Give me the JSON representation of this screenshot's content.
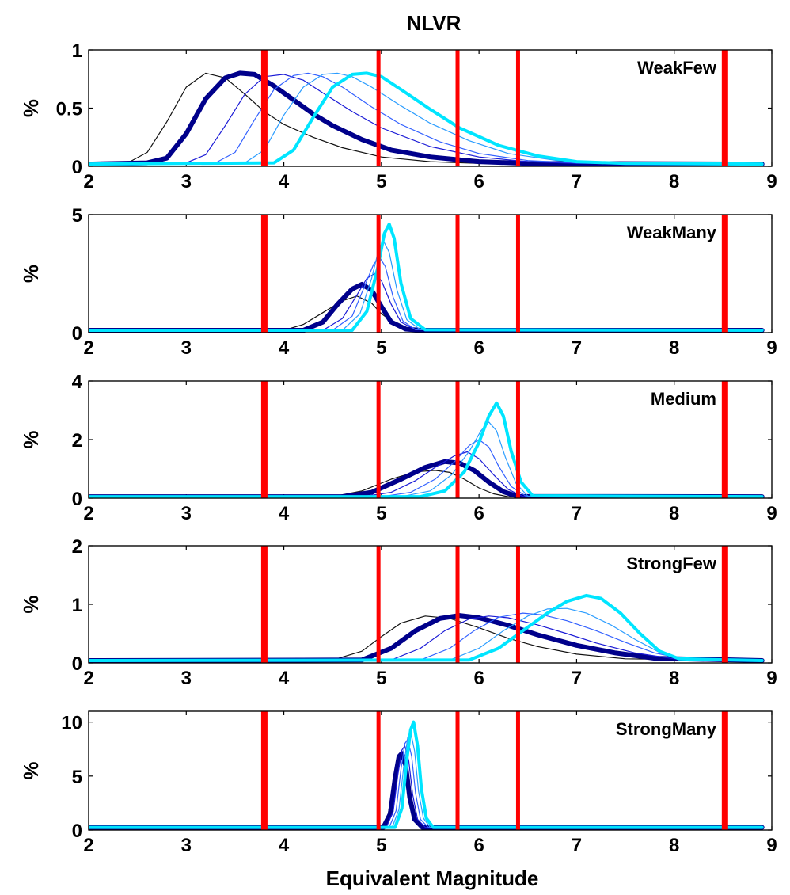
{
  "chart_data": {
    "type": "line",
    "title": "NLVR",
    "xlabel": "Equivalent Magnitude",
    "xlim": [
      2,
      9
    ],
    "xticks": [
      2,
      3,
      4,
      5,
      6,
      7,
      8,
      9
    ],
    "ylabel": "%",
    "grid": false,
    "legend": "none",
    "reference_lines": {
      "color": "#ff0000",
      "x": [
        3.8,
        4.97,
        5.78,
        6.4,
        8.52
      ]
    },
    "series_styles": [
      {
        "color": "#111111",
        "width": 1.2
      },
      {
        "color": "#00008b",
        "width": 6
      },
      {
        "color": "#1a1ad6",
        "width": 1.2
      },
      {
        "color": "#3361ff",
        "width": 1.2
      },
      {
        "color": "#2b9dff",
        "width": 1.2
      },
      {
        "color": "#00e5ff",
        "width": 4
      }
    ],
    "panels": [
      {
        "label": "WeakFew",
        "ylim": [
          0,
          1
        ],
        "yticks": [
          "0",
          "0.5",
          "1"
        ],
        "series": [
          {
            "x": [
              2.0,
              2.4,
              2.6,
              2.8,
              3.0,
              3.2,
              3.4,
              3.6,
              3.8,
              4.0,
              4.3,
              4.6,
              5.0,
              5.5,
              6.0,
              6.5,
              8.9
            ],
            "values": [
              0.02,
              0.03,
              0.12,
              0.38,
              0.68,
              0.8,
              0.76,
              0.62,
              0.47,
              0.36,
              0.25,
              0.16,
              0.08,
              0.04,
              0.025,
              0.02,
              0.02
            ]
          },
          {
            "x": [
              2.0,
              2.6,
              2.8,
              3.0,
              3.2,
              3.4,
              3.55,
              3.7,
              3.9,
              4.1,
              4.3,
              4.5,
              4.8,
              5.1,
              5.5,
              6.0,
              6.5,
              8.9
            ],
            "values": [
              0.02,
              0.03,
              0.07,
              0.28,
              0.58,
              0.76,
              0.8,
              0.79,
              0.69,
              0.57,
              0.45,
              0.35,
              0.23,
              0.14,
              0.08,
              0.04,
              0.025,
              0.02
            ]
          },
          {
            "x": [
              2.0,
              3.0,
              3.2,
              3.4,
              3.6,
              3.8,
              4.0,
              4.2,
              4.4,
              4.7,
              5.0,
              5.5,
              6.0,
              6.5,
              7.0,
              8.9
            ],
            "values": [
              0.02,
              0.03,
              0.1,
              0.35,
              0.62,
              0.77,
              0.79,
              0.74,
              0.63,
              0.47,
              0.33,
              0.17,
              0.08,
              0.04,
              0.025,
              0.02
            ]
          },
          {
            "x": [
              2.0,
              3.3,
              3.5,
              3.7,
              3.9,
              4.1,
              4.25,
              4.4,
              4.6,
              4.9,
              5.2,
              5.6,
              6.0,
              6.5,
              7.0,
              8.9
            ],
            "values": [
              0.02,
              0.03,
              0.12,
              0.4,
              0.66,
              0.78,
              0.8,
              0.77,
              0.68,
              0.51,
              0.36,
              0.21,
              0.11,
              0.05,
              0.03,
              0.02
            ]
          },
          {
            "x": [
              2.0,
              3.6,
              3.8,
              4.0,
              4.2,
              4.4,
              4.55,
              4.7,
              4.9,
              5.2,
              5.5,
              5.9,
              6.3,
              6.8,
              7.3,
              8.9
            ],
            "values": [
              0.02,
              0.03,
              0.14,
              0.44,
              0.68,
              0.79,
              0.8,
              0.77,
              0.68,
              0.52,
              0.37,
              0.22,
              0.11,
              0.05,
              0.03,
              0.02
            ]
          },
          {
            "x": [
              2.0,
              3.9,
              4.1,
              4.3,
              4.5,
              4.7,
              4.85,
              5.0,
              5.2,
              5.5,
              5.8,
              6.2,
              6.6,
              7.0,
              7.5,
              8.9
            ],
            "values": [
              0.02,
              0.03,
              0.14,
              0.42,
              0.68,
              0.79,
              0.8,
              0.77,
              0.66,
              0.49,
              0.33,
              0.18,
              0.09,
              0.04,
              0.025,
              0.02
            ]
          }
        ]
      },
      {
        "label": "WeakMany",
        "ylim": [
          0,
          5
        ],
        "yticks": [
          "0",
          "5"
        ],
        "series": [
          {
            "x": [
              2.0,
              4.0,
              4.2,
              4.4,
              4.6,
              4.75,
              4.9,
              5.0,
              5.15,
              5.3,
              5.5,
              8.9
            ],
            "values": [
              0.1,
              0.1,
              0.35,
              0.85,
              1.35,
              1.55,
              1.25,
              0.8,
              0.35,
              0.15,
              0.1,
              0.1
            ]
          },
          {
            "x": [
              2.0,
              4.2,
              4.4,
              4.55,
              4.7,
              4.8,
              4.9,
              5.0,
              5.1,
              5.25,
              5.4,
              8.9
            ],
            "values": [
              0.1,
              0.1,
              0.45,
              1.2,
              1.85,
              2.05,
              1.8,
              1.1,
              0.45,
              0.15,
              0.1,
              0.1
            ]
          },
          {
            "x": [
              2.0,
              4.4,
              4.6,
              4.75,
              4.85,
              4.93,
              5.0,
              5.1,
              5.2,
              5.35,
              8.9
            ],
            "values": [
              0.1,
              0.1,
              0.6,
              1.6,
              2.3,
              2.5,
              2.2,
              1.2,
              0.45,
              0.12,
              0.1
            ]
          },
          {
            "x": [
              2.0,
              4.5,
              4.7,
              4.82,
              4.92,
              4.98,
              5.04,
              5.12,
              5.22,
              5.35,
              8.9
            ],
            "values": [
              0.1,
              0.1,
              0.7,
              1.9,
              2.9,
              3.2,
              2.8,
              1.5,
              0.5,
              0.12,
              0.1
            ]
          },
          {
            "x": [
              2.0,
              4.6,
              4.78,
              4.9,
              4.97,
              5.02,
              5.08,
              5.16,
              5.26,
              5.4,
              8.9
            ],
            "values": [
              0.1,
              0.1,
              0.8,
              2.3,
              3.5,
              3.9,
              3.4,
              1.8,
              0.55,
              0.12,
              0.1
            ]
          },
          {
            "x": [
              2.0,
              4.7,
              4.85,
              4.96,
              5.03,
              5.08,
              5.13,
              5.2,
              5.3,
              5.45,
              8.9
            ],
            "values": [
              0.1,
              0.1,
              0.9,
              2.7,
              4.2,
              4.6,
              4.0,
              2.1,
              0.6,
              0.12,
              0.1
            ]
          }
        ]
      },
      {
        "label": "Medium",
        "ylim": [
          0,
          4
        ],
        "yticks": [
          "0",
          "2",
          "4"
        ],
        "series": [
          {
            "x": [
              2.0,
              4.5,
              4.8,
              5.1,
              5.35,
              5.55,
              5.7,
              5.85,
              6.0,
              6.15,
              6.3,
              8.9
            ],
            "values": [
              0.05,
              0.05,
              0.25,
              0.65,
              0.9,
              0.95,
              0.88,
              0.65,
              0.35,
              0.15,
              0.05,
              0.05
            ]
          },
          {
            "x": [
              2.0,
              4.6,
              4.9,
              5.2,
              5.45,
              5.65,
              5.8,
              5.95,
              6.1,
              6.25,
              6.4,
              8.9
            ],
            "values": [
              0.05,
              0.05,
              0.2,
              0.65,
              1.05,
              1.25,
              1.2,
              0.95,
              0.55,
              0.22,
              0.06,
              0.05
            ]
          },
          {
            "x": [
              2.0,
              4.8,
              5.1,
              5.35,
              5.55,
              5.75,
              5.88,
              6.0,
              6.15,
              6.3,
              6.45,
              8.9
            ],
            "values": [
              0.05,
              0.05,
              0.2,
              0.6,
              1.05,
              1.45,
              1.58,
              1.35,
              0.8,
              0.3,
              0.06,
              0.05
            ]
          },
          {
            "x": [
              2.0,
              5.0,
              5.3,
              5.55,
              5.75,
              5.9,
              6.0,
              6.1,
              6.2,
              6.33,
              6.48,
              8.9
            ],
            "values": [
              0.05,
              0.05,
              0.2,
              0.65,
              1.25,
              1.8,
              2.0,
              1.75,
              1.1,
              0.4,
              0.07,
              0.05
            ]
          },
          {
            "x": [
              2.0,
              5.2,
              5.5,
              5.72,
              5.9,
              6.02,
              6.1,
              6.18,
              6.27,
              6.38,
              6.5,
              8.9
            ],
            "values": [
              0.05,
              0.05,
              0.25,
              0.8,
              1.6,
              2.3,
              2.6,
              2.3,
              1.4,
              0.5,
              0.07,
              0.05
            ]
          },
          {
            "x": [
              2.0,
              5.4,
              5.65,
              5.85,
              6.0,
              6.1,
              6.18,
              6.25,
              6.33,
              6.43,
              6.55,
              8.9
            ],
            "values": [
              0.05,
              0.05,
              0.25,
              0.9,
              1.9,
              2.8,
              3.25,
              2.8,
              1.6,
              0.55,
              0.08,
              0.05
            ]
          }
        ]
      },
      {
        "label": "StrongFew",
        "ylim": [
          0,
          2
        ],
        "yticks": [
          "0",
          "1",
          "2"
        ],
        "series": [
          {
            "x": [
              2.0,
              4.5,
              4.8,
              5.0,
              5.2,
              5.45,
              5.7,
              6.0,
              6.3,
              6.6,
              7.0,
              7.5,
              8.9
            ],
            "values": [
              0.04,
              0.05,
              0.2,
              0.45,
              0.68,
              0.8,
              0.76,
              0.6,
              0.42,
              0.28,
              0.15,
              0.07,
              0.04
            ]
          },
          {
            "x": [
              2.0,
              4.8,
              5.1,
              5.35,
              5.6,
              5.8,
              6.0,
              6.3,
              6.6,
              7.0,
              7.4,
              7.8,
              8.9
            ],
            "values": [
              0.04,
              0.05,
              0.25,
              0.55,
              0.76,
              0.81,
              0.77,
              0.64,
              0.48,
              0.3,
              0.17,
              0.08,
              0.04
            ]
          },
          {
            "x": [
              2.0,
              5.1,
              5.4,
              5.65,
              5.9,
              6.1,
              6.3,
              6.6,
              6.9,
              7.2,
              7.6,
              8.0,
              8.9
            ],
            "values": [
              0.04,
              0.05,
              0.25,
              0.55,
              0.75,
              0.8,
              0.77,
              0.65,
              0.5,
              0.34,
              0.17,
              0.07,
              0.04
            ]
          },
          {
            "x": [
              2.0,
              5.4,
              5.7,
              5.95,
              6.2,
              6.45,
              6.65,
              6.9,
              7.2,
              7.5,
              7.8,
              8.1,
              8.9
            ],
            "values": [
              0.04,
              0.05,
              0.25,
              0.55,
              0.78,
              0.85,
              0.82,
              0.72,
              0.55,
              0.35,
              0.17,
              0.07,
              0.04
            ]
          },
          {
            "x": [
              2.0,
              5.7,
              6.0,
              6.25,
              6.5,
              6.7,
              6.9,
              7.1,
              7.35,
              7.6,
              7.85,
              8.1,
              8.9
            ],
            "values": [
              0.04,
              0.05,
              0.25,
              0.55,
              0.8,
              0.92,
              0.93,
              0.85,
              0.65,
              0.4,
              0.18,
              0.07,
              0.04
            ]
          },
          {
            "x": [
              2.0,
              5.9,
              6.2,
              6.45,
              6.7,
              6.9,
              7.1,
              7.25,
              7.45,
              7.65,
              7.85,
              8.05,
              8.9
            ],
            "values": [
              0.04,
              0.05,
              0.25,
              0.55,
              0.85,
              1.05,
              1.15,
              1.1,
              0.85,
              0.5,
              0.2,
              0.07,
              0.04
            ]
          }
        ]
      },
      {
        "label": "StrongMany",
        "ylim": [
          0,
          11
        ],
        "yticks": [
          "0",
          "5",
          "10"
        ],
        "series": [
          {
            "x": [
              2.0,
              5.0,
              5.07,
              5.12,
              5.16,
              5.2,
              5.24,
              5.28,
              5.33,
              5.4,
              8.9
            ],
            "values": [
              0.25,
              0.25,
              1.5,
              4.5,
              6.6,
              7.0,
              5.8,
              3.0,
              1.0,
              0.25,
              0.25
            ]
          },
          {
            "x": [
              2.0,
              5.02,
              5.09,
              5.14,
              5.18,
              5.21,
              5.25,
              5.29,
              5.34,
              5.42,
              8.9
            ],
            "values": [
              0.25,
              0.25,
              1.5,
              4.8,
              6.8,
              7.1,
              5.9,
              3.0,
              1.0,
              0.25,
              0.25
            ]
          },
          {
            "x": [
              2.0,
              5.05,
              5.12,
              5.17,
              5.21,
              5.24,
              5.28,
              5.32,
              5.37,
              5.45,
              8.9
            ],
            "values": [
              0.25,
              0.25,
              1.7,
              5.2,
              7.4,
              7.8,
              6.4,
              3.3,
              1.0,
              0.25,
              0.25
            ]
          },
          {
            "x": [
              2.0,
              5.08,
              5.15,
              5.2,
              5.24,
              5.27,
              5.31,
              5.35,
              5.4,
              5.48,
              8.9
            ],
            "values": [
              0.25,
              0.25,
              1.8,
              5.6,
              8.0,
              8.4,
              6.8,
              3.4,
              1.0,
              0.25,
              0.25
            ]
          },
          {
            "x": [
              2.0,
              5.11,
              5.18,
              5.23,
              5.27,
              5.3,
              5.34,
              5.38,
              5.43,
              5.5,
              8.9
            ],
            "values": [
              0.25,
              0.25,
              1.9,
              6.0,
              8.6,
              9.1,
              7.3,
              3.6,
              1.1,
              0.25,
              0.25
            ]
          },
          {
            "x": [
              2.0,
              5.14,
              5.21,
              5.26,
              5.3,
              5.33,
              5.37,
              5.41,
              5.46,
              5.53,
              8.9
            ],
            "values": [
              0.25,
              0.25,
              2.0,
              6.5,
              9.3,
              10.0,
              7.8,
              3.8,
              1.1,
              0.25,
              0.25
            ]
          }
        ]
      }
    ]
  }
}
